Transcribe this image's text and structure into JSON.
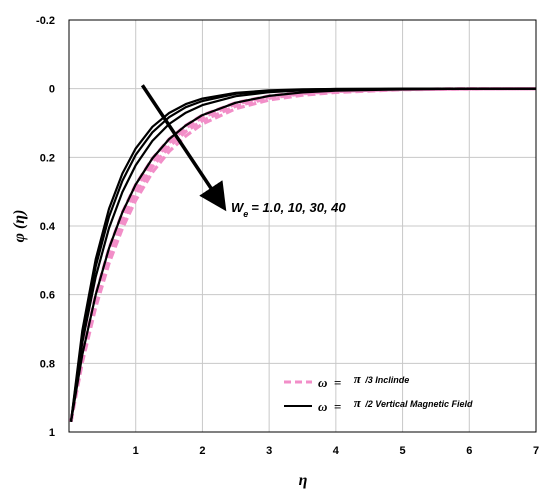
{
  "chart_data": {
    "type": "line",
    "xlabel": "η",
    "ylabel": "φ (η)",
    "xlim": [
      0,
      7
    ],
    "ylim": [
      -0.2,
      1
    ],
    "y_inverted": true,
    "x_ticks": [
      "1",
      "2",
      "3",
      "4",
      "5",
      "6",
      "7"
    ],
    "y_ticks": [
      "-0.2",
      "0",
      "0.2",
      "0.4",
      "0.6",
      "0.8",
      "1"
    ],
    "grid": true,
    "annotation": {
      "text": "We = 1.0, 10, 30, 40",
      "symbol": "W",
      "subscript": "e",
      "values": "= 1.0, 10, 30, 40",
      "arrow_from": [
        1.1,
        -0.01
      ],
      "arrow_to": [
        2.3,
        0.34
      ]
    },
    "legend": {
      "placement": "bottom-right",
      "entries": [
        {
          "symbol": "ω",
          "eq": "=",
          "pi": "π",
          "rest": "/3 Inclinde",
          "style": "dashed",
          "color": "#f28ec8"
        },
        {
          "symbol": "ω",
          "eq": "=",
          "pi": "π",
          "rest": "/2 Vertical Magnetic Field",
          "style": "solid",
          "color": "#000000"
        }
      ]
    },
    "series": [
      {
        "group": "inclined",
        "We": 1.0,
        "style": "dashed",
        "color": "#f28ec8",
        "x": [
          0.03,
          0.2,
          0.4,
          0.6,
          0.8,
          1.0,
          1.25,
          1.5,
          1.75,
          2.0,
          2.5,
          3.0,
          3.5,
          4.0,
          5.0,
          6.0,
          7.0
        ],
        "y": [
          0.97,
          0.798,
          0.637,
          0.509,
          0.407,
          0.325,
          0.244,
          0.183,
          0.138,
          0.103,
          0.058,
          0.033,
          0.019,
          0.011,
          0.003,
          0.001,
          0.0
        ]
      },
      {
        "group": "inclined",
        "We": 10,
        "style": "dashed",
        "color": "#f28ec8",
        "x": [
          0.03,
          0.2,
          0.4,
          0.6,
          0.8,
          1.0,
          1.25,
          1.5,
          1.75,
          2.0,
          2.5,
          3.0,
          3.5,
          4.0,
          5.0,
          6.0,
          7.0
        ],
        "y": [
          0.97,
          0.79,
          0.624,
          0.493,
          0.389,
          0.307,
          0.228,
          0.169,
          0.125,
          0.093,
          0.051,
          0.028,
          0.015,
          0.008,
          0.002,
          0.001,
          0.0
        ]
      },
      {
        "group": "inclined",
        "We": 30,
        "style": "dashed",
        "color": "#f28ec8",
        "x": [
          0.03,
          0.2,
          0.4,
          0.6,
          0.8,
          1.0,
          1.25,
          1.5,
          1.75,
          2.0,
          2.5,
          3.0,
          3.5,
          4.0,
          5.0,
          6.0,
          7.0
        ],
        "y": [
          0.97,
          0.782,
          0.611,
          0.478,
          0.374,
          0.292,
          0.214,
          0.157,
          0.115,
          0.084,
          0.045,
          0.024,
          0.013,
          0.007,
          0.002,
          0.0,
          0.0
        ]
      },
      {
        "group": "inclined",
        "We": 40,
        "style": "dashed",
        "color": "#f28ec8",
        "x": [
          0.03,
          0.2,
          0.4,
          0.6,
          0.8,
          1.0,
          1.25,
          1.5,
          1.75,
          2.0,
          2.5,
          3.0,
          3.5,
          4.0,
          5.0,
          6.0,
          7.0
        ],
        "y": [
          0.97,
          0.775,
          0.6,
          0.465,
          0.36,
          0.279,
          0.203,
          0.147,
          0.107,
          0.077,
          0.041,
          0.021,
          0.011,
          0.006,
          0.002,
          0.0,
          0.0
        ]
      },
      {
        "group": "vertical",
        "We": 1.0,
        "style": "solid",
        "color": "#000000",
        "x": [
          0.03,
          0.2,
          0.4,
          0.6,
          0.8,
          1.0,
          1.25,
          1.5,
          1.75,
          2.0,
          2.5,
          3.0,
          3.5,
          4.0,
          5.0,
          6.0,
          7.0
        ],
        "y": [
          0.97,
          0.775,
          0.6,
          0.465,
          0.36,
          0.279,
          0.203,
          0.147,
          0.107,
          0.077,
          0.041,
          0.021,
          0.011,
          0.006,
          0.002,
          0.0,
          0.0
        ]
      },
      {
        "group": "vertical",
        "We": 10,
        "style": "solid",
        "color": "#000000",
        "x": [
          0.03,
          0.2,
          0.4,
          0.6,
          0.8,
          1.0,
          1.25,
          1.5,
          1.75,
          2.0,
          2.5,
          3.0,
          3.5,
          4.0,
          5.0,
          6.0,
          7.0
        ],
        "y": [
          0.97,
          0.74,
          0.548,
          0.406,
          0.301,
          0.223,
          0.152,
          0.103,
          0.07,
          0.048,
          0.022,
          0.01,
          0.005,
          0.002,
          0.001,
          0.0,
          0.0
        ]
      },
      {
        "group": "vertical",
        "We": 30,
        "style": "solid",
        "color": "#000000",
        "x": [
          0.03,
          0.2,
          0.4,
          0.6,
          0.8,
          1.0,
          1.25,
          1.5,
          1.75,
          2.0,
          2.5,
          3.0,
          3.5,
          4.0,
          5.0,
          6.0,
          7.0
        ],
        "y": [
          0.97,
          0.72,
          0.518,
          0.373,
          0.268,
          0.193,
          0.127,
          0.083,
          0.054,
          0.036,
          0.015,
          0.007,
          0.003,
          0.001,
          0.0,
          0.0,
          0.0
        ]
      },
      {
        "group": "vertical",
        "We": 40,
        "style": "solid",
        "color": "#000000",
        "x": [
          0.03,
          0.2,
          0.4,
          0.6,
          0.8,
          1.0,
          1.25,
          1.5,
          1.75,
          2.0,
          2.5,
          3.0,
          3.5,
          4.0,
          5.0,
          6.0,
          7.0
        ],
        "y": [
          0.97,
          0.705,
          0.497,
          0.35,
          0.247,
          0.174,
          0.111,
          0.071,
          0.045,
          0.029,
          0.012,
          0.005,
          0.002,
          0.001,
          0.0,
          0.0,
          0.0
        ]
      }
    ]
  }
}
